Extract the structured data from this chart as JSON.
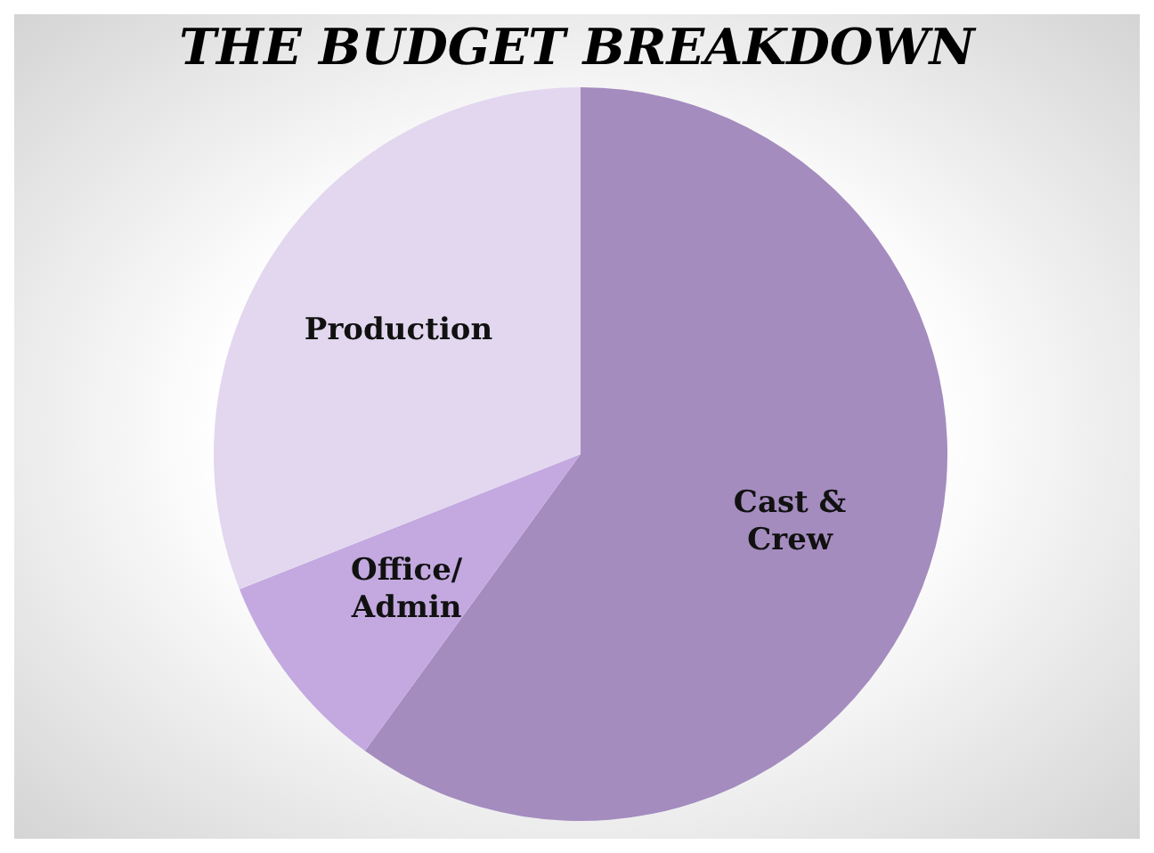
{
  "chart_data": {
    "type": "pie",
    "title": "THE BUDGET BREAKDOWN",
    "categories": [
      "Cast & Crew",
      "Office/Admin",
      "Production"
    ],
    "values": [
      60,
      9,
      31
    ],
    "colors": [
      "#a48cbf",
      "#c3a9df",
      "#e2d7ef"
    ]
  }
}
